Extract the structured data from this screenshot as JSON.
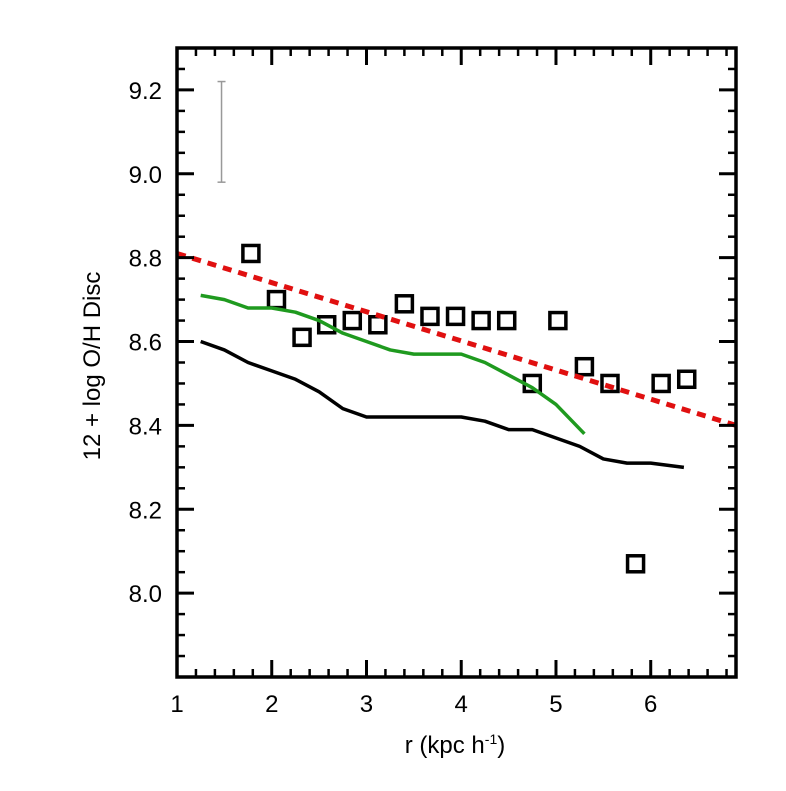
{
  "chart_data": {
    "type": "scatter",
    "title": "",
    "xlabel_main": "r (kpc h",
    "xlabel_sup": "-1",
    "xlabel_end": ")",
    "ylabel": "12 + log O/H Disc",
    "xlim": [
      1.0,
      6.9
    ],
    "ylim": [
      7.8,
      9.3
    ],
    "x_ticks": [
      1,
      2,
      3,
      4,
      5,
      6
    ],
    "x_tick_labels": [
      "1",
      "2",
      "3",
      "4",
      "5",
      "6"
    ],
    "y_ticks": [
      8.0,
      8.2,
      8.4,
      8.6,
      8.8,
      9.0,
      9.2
    ],
    "y_tick_labels": [
      "8.0",
      "8.2",
      "8.4",
      "8.6",
      "8.8",
      "9.0",
      "9.2"
    ],
    "grid": false,
    "legend": "none",
    "series": [
      {
        "style": "square-markers",
        "color": "#000000",
        "x": [
          1.78,
          2.05,
          2.32,
          2.58,
          2.85,
          3.12,
          3.4,
          3.67,
          3.94,
          4.21,
          4.48,
          4.75,
          5.02,
          5.3,
          5.57,
          5.84,
          6.11,
          6.38
        ],
        "y": [
          8.81,
          8.7,
          8.61,
          8.64,
          8.65,
          8.64,
          8.69,
          8.66,
          8.66,
          8.65,
          8.65,
          8.5,
          8.65,
          8.54,
          8.5,
          8.07,
          8.5,
          8.51
        ]
      },
      {
        "style": "solid-line",
        "color": "#1f9a1f",
        "x": [
          1.25,
          1.5,
          1.75,
          2.0,
          2.25,
          2.5,
          2.75,
          3.0,
          3.25,
          3.5,
          3.75,
          4.0,
          4.25,
          4.5,
          4.75,
          5.0,
          5.3
        ],
        "y": [
          8.71,
          8.7,
          8.68,
          8.68,
          8.67,
          8.65,
          8.62,
          8.6,
          8.58,
          8.57,
          8.57,
          8.57,
          8.55,
          8.52,
          8.49,
          8.45,
          8.38
        ]
      },
      {
        "style": "solid-line",
        "color": "#000000",
        "x": [
          1.25,
          1.5,
          1.75,
          2.0,
          2.25,
          2.5,
          2.75,
          3.0,
          3.25,
          3.5,
          3.75,
          4.0,
          4.25,
          4.5,
          4.75,
          5.0,
          5.25,
          5.5,
          5.75,
          6.0,
          6.35
        ],
        "y": [
          8.6,
          8.58,
          8.55,
          8.53,
          8.51,
          8.48,
          8.44,
          8.42,
          8.42,
          8.42,
          8.42,
          8.42,
          8.41,
          8.39,
          8.39,
          8.37,
          8.35,
          8.32,
          8.31,
          8.31,
          8.3
        ]
      },
      {
        "style": "dashed-line",
        "color": "#e01010",
        "x": [
          1.0,
          6.9
        ],
        "y": [
          8.81,
          8.4
        ]
      }
    ],
    "error_bar": {
      "x": 1.47,
      "y_low": 8.98,
      "y_high": 9.22,
      "color": "#999999"
    }
  }
}
